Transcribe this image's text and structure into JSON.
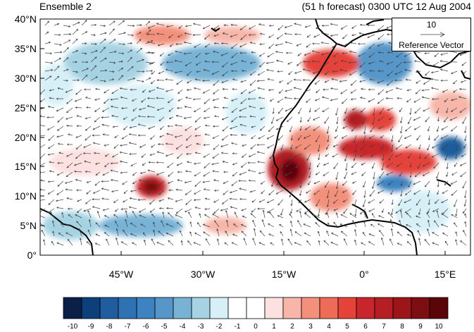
{
  "header": {
    "ensemble_label": "Ensemble 2",
    "forecast_label": "(51 h forecast) 0300 UTC 12 Aug 2004"
  },
  "axes": {
    "lat_labels": [
      "40°N",
      "35°N",
      "30°N",
      "25°N",
      "20°N",
      "15°N",
      "10°N",
      "5°N",
      "0°"
    ],
    "lon_labels": [
      "45°W",
      "30°W",
      "15°W",
      "0°",
      "15°E"
    ]
  },
  "reference_vector": {
    "value": "10",
    "label": "Reference Vector"
  },
  "colorbar": {
    "labels": [
      "-10",
      "-9",
      "-8",
      "-7",
      "-6",
      "-5",
      "-4",
      "-3",
      "-2",
      "-1",
      "0",
      "1",
      "2",
      "3",
      "4",
      "5",
      "6",
      "7",
      "8",
      "9",
      "10"
    ],
    "colors": [
      "#0b1f47",
      "#0d3f7a",
      "#1f5d9e",
      "#2f72b4",
      "#3d83c1",
      "#5796c9",
      "#78b3d6",
      "#a6d3e3",
      "#d7f0f8",
      "#ffffff",
      "#ffffff",
      "#fde0e0",
      "#f7b6a9",
      "#f3907c",
      "#ee6b58",
      "#e5423a",
      "#c9252c",
      "#b51f24",
      "#9b1519",
      "#7c0d10",
      "#5a0608"
    ]
  },
  "colors": {
    "land_outline": "#000000",
    "vector": "#444444"
  }
}
